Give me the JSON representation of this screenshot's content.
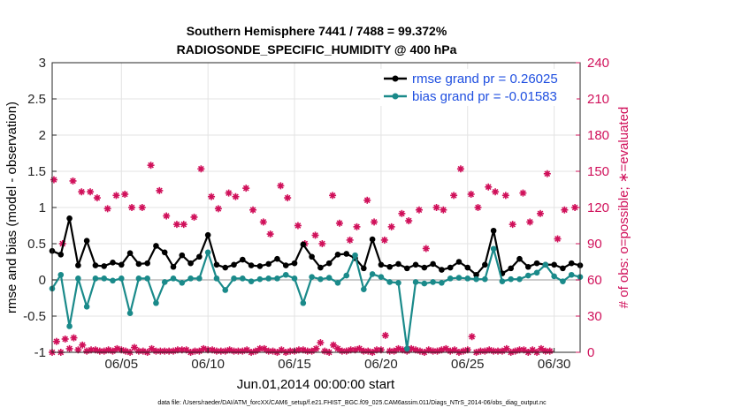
{
  "chart_data": {
    "type": "line",
    "title_line1": "Southern Hemisphere 7441 / 7488 = 99.372%",
    "title_line2": "RADIOSONDE_SPECIFIC_HUMIDITY @ 400 hPa",
    "xlabel": "Jun.01,2014 00:00:00 start",
    "ylabel_left": "rmse and bias (model - observation)",
    "ylabel_right": "# of obs: o=possible; ∗=evaluated",
    "footnote": "data file: /Users/raeder/DAI/ATM_forcXX/CAM6_setup/f.e21.FHIST_BGC.f09_025.CAM6assim.011/Diags_NTrS_2014-06/obs_diag_output.nc",
    "x_range_days": [
      1,
      31.5
    ],
    "ylim_left": [
      -1,
      3
    ],
    "ylim_right": [
      0,
      240
    ],
    "left_ticks": [
      "-1",
      "-0.5",
      "0",
      "0.5",
      "1",
      "1.5",
      "2",
      "2.5",
      "3"
    ],
    "right_ticks": [
      "0",
      "30",
      "60",
      "90",
      "120",
      "150",
      "180",
      "210",
      "240"
    ],
    "x_ticks": [
      "06/05",
      "06/10",
      "06/15",
      "06/20",
      "06/25",
      "06/30"
    ],
    "x_tick_days": [
      5,
      10,
      15,
      20,
      25,
      30
    ],
    "legend": [
      "rmse grand pr = 0.26025",
      "bias grand pr = -0.01583"
    ],
    "x_days": [
      1.0,
      1.5,
      2.0,
      2.5,
      3.0,
      3.5,
      4.0,
      4.5,
      5.0,
      5.5,
      6.0,
      6.5,
      7.0,
      7.5,
      8.0,
      8.5,
      9.0,
      9.5,
      10.0,
      10.5,
      11.0,
      11.5,
      12.0,
      12.5,
      13.0,
      13.5,
      14.0,
      14.5,
      15.0,
      15.5,
      16.0,
      16.5,
      17.0,
      17.5,
      18.0,
      18.5,
      19.0,
      19.5,
      20.0,
      20.5,
      21.0,
      21.5,
      22.0,
      22.5,
      23.0,
      23.5,
      24.0,
      24.5,
      25.0,
      25.5,
      26.0,
      26.5,
      27.0,
      27.5,
      28.0,
      28.5,
      29.0,
      29.5,
      30.0,
      30.5,
      31.0,
      31.5
    ],
    "series": [
      {
        "name": "rmse",
        "color": "#000000",
        "values": [
          0.4,
          0.35,
          0.85,
          0.2,
          0.54,
          0.2,
          0.19,
          0.24,
          0.21,
          0.37,
          0.22,
          0.23,
          0.47,
          0.38,
          0.18,
          0.34,
          0.23,
          0.32,
          0.62,
          0.21,
          0.17,
          0.21,
          0.28,
          0.2,
          0.19,
          0.22,
          0.29,
          0.2,
          0.23,
          0.49,
          0.32,
          0.17,
          0.23,
          0.35,
          0.36,
          0.3,
          0.16,
          0.56,
          0.21,
          0.18,
          0.22,
          0.16,
          0.21,
          0.17,
          0.22,
          0.14,
          0.17,
          0.25,
          0.17,
          0.07,
          0.21,
          0.68,
          0.09,
          0.16,
          0.29,
          0.18,
          0.23,
          0.21,
          0.21,
          0.16,
          0.23,
          0.2
        ]
      },
      {
        "name": "bias",
        "color": "#1a8a8a",
        "values": [
          -0.12,
          0.07,
          -0.64,
          0.02,
          -0.37,
          0.02,
          0.02,
          -0.01,
          0.02,
          -0.46,
          0.02,
          0.02,
          -0.32,
          -0.03,
          0.02,
          -0.04,
          0.02,
          0.02,
          0.38,
          0.02,
          -0.14,
          0.02,
          0.02,
          -0.02,
          0.01,
          0.02,
          0.02,
          0.07,
          0.02,
          -0.32,
          0.04,
          0.01,
          0.03,
          -0.04,
          0.06,
          0.34,
          -0.13,
          0.08,
          0.04,
          -0.03,
          -0.04,
          -0.95,
          -0.03,
          -0.05,
          -0.03,
          -0.04,
          0.02,
          0.03,
          0.02,
          0.01,
          0.01,
          0.43,
          -0.02,
          0.01,
          0.01,
          0.06,
          0.1,
          0.21,
          0.05,
          -0.02,
          0.07,
          0.04
        ]
      }
    ],
    "obs_evaluated_0000": [
      0,
      0,
      3,
      2,
      1,
      2,
      1,
      1,
      2,
      0,
      1,
      0,
      1,
      1,
      1,
      2,
      0,
      1,
      2,
      1,
      1,
      1,
      1,
      0,
      3,
      1,
      0,
      0,
      1,
      2,
      1,
      8,
      0,
      3,
      1,
      2,
      1,
      0,
      2,
      1,
      3,
      1,
      2,
      0,
      1,
      2,
      1,
      0,
      2,
      0,
      1,
      1,
      1,
      0,
      2,
      0,
      0,
      1
    ],
    "x_days_obs_0000": [
      1,
      1.5,
      2,
      2.5,
      3,
      3.5,
      4,
      4.5,
      5,
      5.5,
      6,
      6.5,
      7,
      7.5,
      8,
      8.5,
      9,
      9.5,
      10,
      10.5,
      11,
      11.5,
      12,
      12.5,
      13,
      13.5,
      14,
      14.5,
      15,
      15.5,
      16,
      16.5,
      17,
      17.5,
      18,
      18.5,
      19,
      19.5,
      20,
      20.5,
      21,
      21.5,
      22,
      22.5,
      23,
      23.5,
      24,
      24.5,
      25,
      25.5,
      26,
      26.5,
      27,
      27.5,
      28,
      28.5,
      29,
      29.5
    ],
    "obs_evaluated_1200": [
      9,
      11,
      12,
      6,
      2,
      1,
      2,
      3,
      1,
      4,
      1,
      3,
      1,
      1,
      2,
      2,
      1,
      3,
      2,
      1,
      2,
      1,
      2,
      1,
      3,
      1,
      2,
      1,
      2,
      1,
      3,
      1,
      6,
      1,
      2,
      3,
      1,
      2,
      14,
      1,
      2,
      3,
      1,
      2,
      1,
      3,
      2,
      1,
      13,
      1,
      2,
      1,
      3,
      1,
      2,
      2,
      3,
      1
    ],
    "obs_evaluated_high": [
      143,
      90,
      142,
      133,
      133,
      128,
      119,
      130,
      131,
      120,
      120,
      155,
      134,
      113,
      106,
      106,
      112,
      152,
      129,
      119,
      132,
      129,
      136,
      118,
      108,
      98,
      138,
      128,
      105,
      90,
      97,
      90,
      130,
      107,
      93,
      104,
      126,
      108,
      93,
      104,
      115,
      109,
      118,
      86,
      120,
      118,
      130,
      152,
      131,
      120,
      137,
      133,
      130,
      106,
      132,
      108,
      115,
      148,
      94,
      118,
      120
    ],
    "x_days_obs_high": [
      1.1,
      1.6,
      2.2,
      2.7,
      3.2,
      3.6,
      4.2,
      4.7,
      5.2,
      5.6,
      6.2,
      6.7,
      7.2,
      7.6,
      8.2,
      8.6,
      9.2,
      9.6,
      10.2,
      10.6,
      11.2,
      11.6,
      12.2,
      12.6,
      13.2,
      13.6,
      14.2,
      14.6,
      15.2,
      15.6,
      16.2,
      16.6,
      17.2,
      17.6,
      18.2,
      18.6,
      19.2,
      19.6,
      20.2,
      20.6,
      21.2,
      21.6,
      22.2,
      22.6,
      23.2,
      23.6,
      24.2,
      24.6,
      25.2,
      25.6,
      26.2,
      26.6,
      27.2,
      27.6,
      28.2,
      28.6,
      29.2,
      29.6,
      30.2,
      30.6,
      31.2
    ],
    "colors": {
      "rmse": "#000000",
      "bias": "#1a8a8a",
      "obs": "#d0105a",
      "legend_text": "#1f4fe0"
    }
  }
}
